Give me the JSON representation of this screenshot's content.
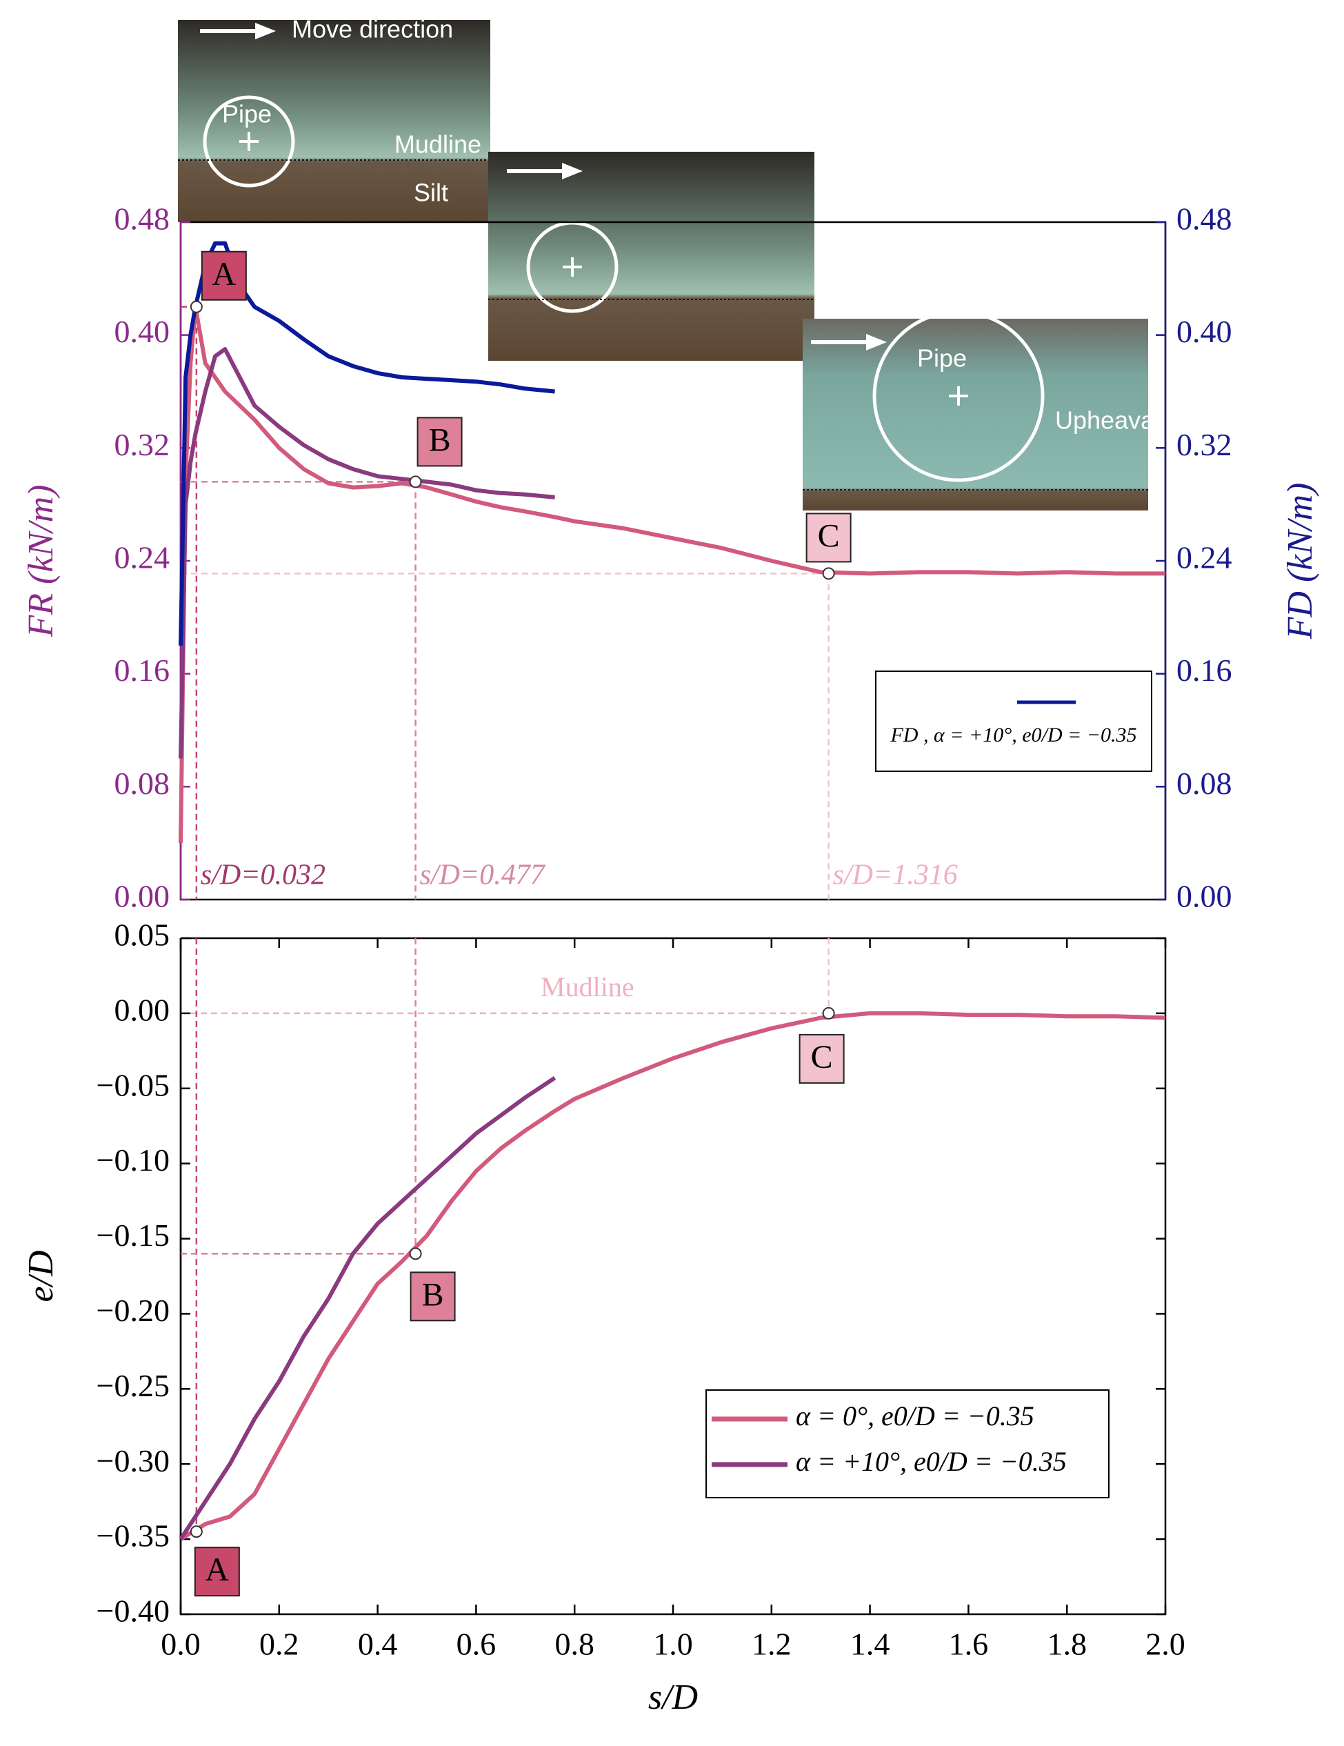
{
  "chart_data": [
    {
      "type": "line",
      "ylabel": "FR (kN/m)",
      "y2label": "FD (kN/m)",
      "xlim": [
        0,
        2
      ],
      "ylim": [
        0,
        0.48
      ],
      "yticks": [
        {
          "value": 0,
          "label": "0.00"
        },
        0.08,
        0.16,
        0.24,
        0.32,
        {
          "value": 0.4,
          "label": "0.40"
        },
        0.48
      ],
      "ycolor": "#8b2a8b",
      "y2lim": [
        0,
        0.48
      ],
      "y2ticks": [
        {
          "value": 0,
          "label": "0.00"
        },
        0.08,
        0.16,
        0.24,
        0.32,
        {
          "value": 0.4,
          "label": "0.40"
        },
        0.48
      ],
      "y2color": "#1a1a8c",
      "x": [
        0,
        0.01,
        0.02,
        0.03,
        0.05,
        0.07,
        0.09,
        0.12,
        0.15,
        0.2,
        0.25,
        0.3,
        0.35,
        0.4,
        0.45,
        0.5,
        0.55,
        0.6,
        0.65,
        0.7,
        0.76,
        0.8,
        0.9,
        1.0,
        1.1,
        1.2,
        1.3,
        1.4,
        1.5,
        1.6,
        1.7,
        1.8,
        1.9,
        2.0
      ],
      "series": [
        {
          "color": "#d25a7c",
          "values": [
            0.04,
            0.3,
            0.38,
            0.42,
            0.38,
            0.37,
            0.36,
            0.35,
            0.34,
            0.32,
            0.305,
            0.295,
            0.292,
            0.293,
            0.295,
            0.292,
            0.287,
            0.282,
            0.278,
            0.275,
            0.271,
            0.268,
            0.263,
            0.256,
            0.249,
            0.24,
            0.232,
            0.231,
            0.232,
            0.232,
            0.231,
            0.232,
            0.231,
            0.231
          ]
        },
        {
          "color": "#8a3a7e",
          "values": [
            0.1,
            0.28,
            0.31,
            0.33,
            0.36,
            0.385,
            0.39,
            0.37,
            0.35,
            0.335,
            0.322,
            0.312,
            0.305,
            0.3,
            0.298,
            0.296,
            0.294,
            0.29,
            0.288,
            0.287,
            0.285,
            null,
            null,
            null,
            null,
            null,
            null,
            null,
            null,
            null,
            null,
            null,
            null,
            null
          ]
        },
        {
          "name": "FD , α = +10°, e0/D = −0.35",
          "color": "#0a1a9a",
          "axis": "y2",
          "values": [
            0.18,
            0.37,
            0.4,
            0.42,
            0.45,
            0.465,
            0.465,
            0.435,
            0.42,
            0.41,
            0.397,
            0.385,
            0.378,
            0.373,
            0.37,
            0.369,
            0.368,
            0.367,
            0.365,
            0.362,
            0.36,
            null,
            null,
            null,
            null,
            null,
            null,
            null,
            null,
            null,
            null,
            null,
            null,
            null
          ]
        }
      ],
      "legend": "center right",
      "points": [
        {
          "label": "A",
          "x": 0.032,
          "y": 0.42,
          "color": "#c8486a",
          "note": "s/D=0.032",
          "note_color": "#a03a6a"
        },
        {
          "label": "B",
          "x": 0.477,
          "y": 0.296,
          "color": "#dd8098",
          "note": "s/D=0.477",
          "note_color": "#d58aa0"
        },
        {
          "label": "C",
          "x": 1.316,
          "y": 0.231,
          "color": "#f2c2cf",
          "note": "s/D=1.316",
          "note_color": "#f0b0c0"
        }
      ],
      "insets": [
        {
          "labels": [
            "Move direction",
            "Pipe",
            "Mudline",
            "Silt"
          ]
        },
        {
          "labels": []
        },
        {
          "labels": [
            "Pipe",
            "Upheaval"
          ]
        }
      ]
    },
    {
      "type": "line",
      "xlabel": "s/D",
      "ylabel": "e/D",
      "xlim": [
        0,
        2
      ],
      "xticks": [
        {
          "value": 0,
          "label": "0.0"
        },
        0.2,
        0.4,
        0.6,
        0.8,
        {
          "value": 1,
          "label": "1.0"
        },
        1.2,
        1.4,
        1.6,
        1.8,
        {
          "value": 2,
          "label": "2.0"
        }
      ],
      "ylim": [
        -0.4,
        0.05
      ],
      "yticks": [
        0.05,
        {
          "value": 0,
          "label": "0.00"
        },
        {
          "value": -0.05,
          "label": "−0.05"
        },
        {
          "value": -0.1,
          "label": "−0.10"
        },
        {
          "value": -0.15,
          "label": "−0.15"
        },
        {
          "value": -0.2,
          "label": "−0.20"
        },
        {
          "value": -0.25,
          "label": "−0.25"
        },
        {
          "value": -0.3,
          "label": "−0.30"
        },
        {
          "value": -0.35,
          "label": "−0.35"
        },
        {
          "value": -0.4,
          "label": "−0.40"
        }
      ],
      "ycolor": "#000000",
      "x": [
        0,
        0.05,
        0.1,
        0.15,
        0.2,
        0.25,
        0.3,
        0.35,
        0.4,
        0.45,
        0.5,
        0.55,
        0.6,
        0.65,
        0.7,
        0.76,
        0.8,
        0.9,
        1.0,
        1.1,
        1.2,
        1.3,
        1.4,
        1.5,
        1.6,
        1.7,
        1.8,
        1.9,
        2.0
      ],
      "series": [
        {
          "name": "α = 0°, e0/D = −0.35",
          "color": "#d25a7c",
          "values": [
            -0.35,
            -0.34,
            -0.335,
            -0.32,
            -0.29,
            -0.26,
            -0.23,
            -0.205,
            -0.18,
            -0.165,
            -0.148,
            -0.125,
            -0.105,
            -0.09,
            -0.078,
            -0.065,
            -0.057,
            -0.043,
            -0.03,
            -0.019,
            -0.01,
            -0.003,
            0,
            0,
            -0.001,
            -0.001,
            -0.002,
            -0.002,
            -0.003
          ]
        },
        {
          "name": "α = +10°, e0/D = −0.35",
          "color": "#8a3a7e",
          "values": [
            -0.35,
            -0.325,
            -0.3,
            -0.27,
            -0.245,
            -0.215,
            -0.19,
            -0.16,
            -0.14,
            -0.125,
            -0.11,
            -0.095,
            -0.08,
            -0.068,
            -0.056,
            -0.043,
            null,
            null,
            null,
            null,
            null,
            null,
            null,
            null,
            null,
            null,
            null,
            null,
            null
          ]
        }
      ],
      "legend": "lower right",
      "points": [
        {
          "label": "A",
          "x": 0.032,
          "y": -0.345,
          "color": "#c8486a"
        },
        {
          "label": "B",
          "x": 0.477,
          "y": -0.16,
          "color": "#dd8098"
        },
        {
          "label": "C",
          "x": 1.316,
          "y": 0,
          "color": "#f2c2cf"
        }
      ],
      "reference": {
        "y": 0,
        "label": "Mudline",
        "color": "#f0b0c0"
      }
    }
  ]
}
